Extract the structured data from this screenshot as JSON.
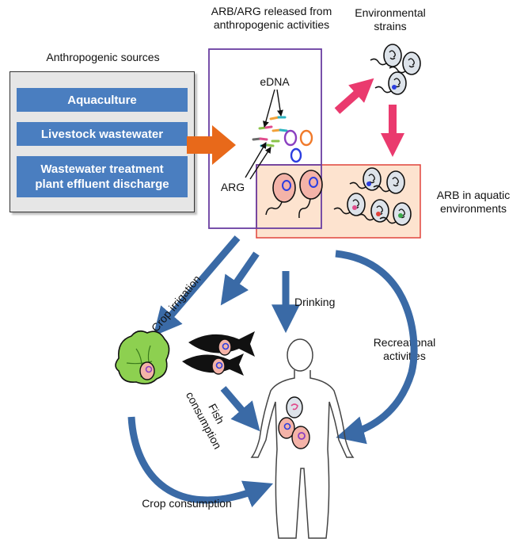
{
  "sources": {
    "title": "Anthropogenic sources",
    "items": [
      {
        "label": "Aquaculture"
      },
      {
        "label": "Livestock wastewater"
      },
      {
        "label": "Wastewater treatment"
      },
      {
        "label": "plant effluent discharge"
      }
    ]
  },
  "release": {
    "title_line1": "ARB/ARG released from",
    "title_line2": "anthropogenic activities",
    "edna_label": "eDNA",
    "arg_label": "ARG"
  },
  "environmental": {
    "line1": "Environmental",
    "line2": "strains"
  },
  "aquatic": {
    "line1": "ARB in aquatic",
    "line2": "environments"
  },
  "pathways": {
    "crop_irrigation": "Crop irrigation",
    "drinking": "Drinking",
    "recreational_line1": "Recreational",
    "recreational_line2": "activities",
    "fish_line1": "Fish",
    "fish_line2": "consumption",
    "crop_consumption": "Crop consumption"
  },
  "colors": {
    "source_item_bg": "#4a7ec0",
    "source_box_bg": "#e6e6e6",
    "release_box_border": "#6a3ea1",
    "aquatic_fill": "#fde3cf",
    "aquatic_border": "#e0443c",
    "orange_arrow": "#e8691a",
    "pink_arrow": "#ea3a6e",
    "blue_arrow": "#3a6aa6",
    "bacterium_pink": "#f4b3a8",
    "bacterium_grey": "#dde3ea"
  }
}
